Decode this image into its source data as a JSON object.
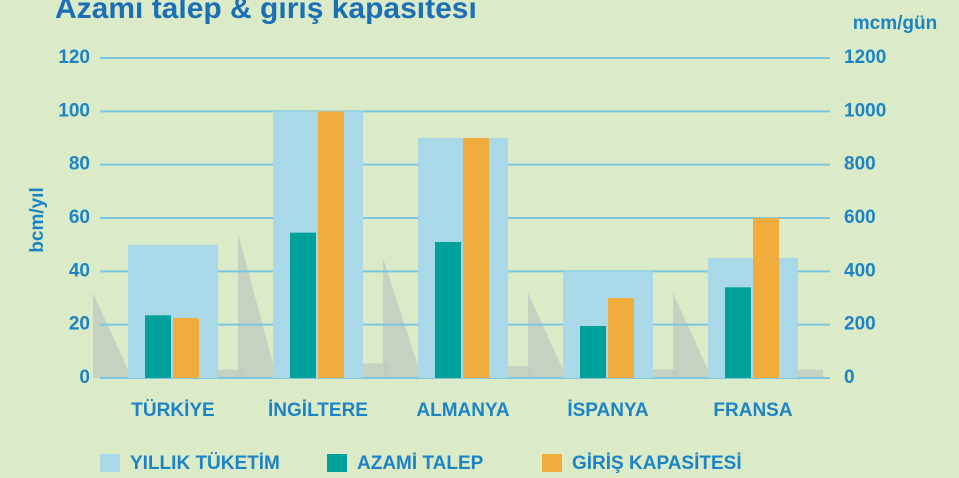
{
  "chart_data": {
    "type": "bar",
    "title": "Azami talep & giriş kapasitesi",
    "y_label": "bcm/yıl",
    "y2_label": "mcm/gün",
    "categories": [
      "TÜRKİYE",
      "İNGİLTERE",
      "ALMANYA",
      "İSPANYA",
      "FRANSA"
    ],
    "series": [
      {
        "name": "YILLIK TÜKETİM",
        "color": "#a9d9e9",
        "values": [
          50,
          100,
          90,
          40,
          45
        ]
      },
      {
        "name": "AZAMİ TALEP",
        "color": "#00a19b",
        "axis": "y2",
        "values": [
          235,
          545,
          510,
          195,
          340
        ]
      },
      {
        "name": "GİRİŞ KAPASİTESİ",
        "color": "#f0ad3e",
        "axis": "y2",
        "values": [
          225,
          1000,
          900,
          300,
          600
        ]
      }
    ],
    "ylim": [
      0,
      120
    ],
    "yticks": [
      0,
      20,
      40,
      60,
      80,
      100,
      120
    ],
    "y2lim": [
      0,
      1200
    ],
    "y2ticks": [
      0,
      200,
      400,
      600,
      800,
      1000,
      1200
    ],
    "grid": true
  }
}
